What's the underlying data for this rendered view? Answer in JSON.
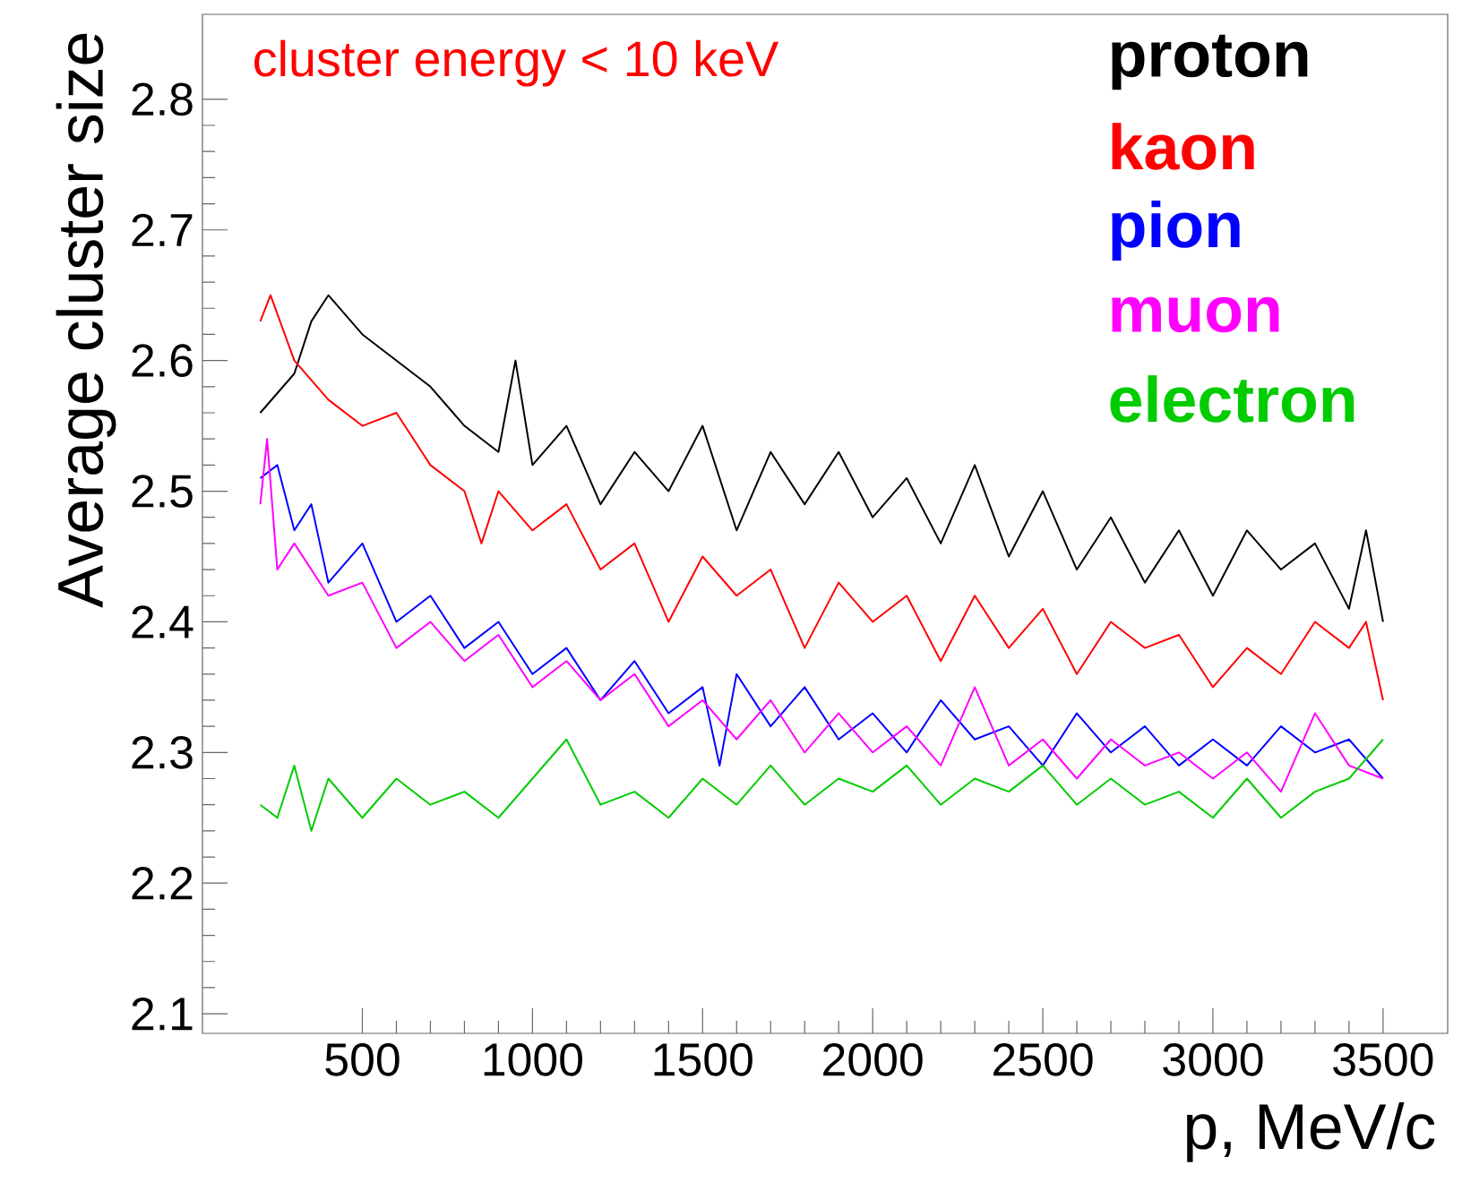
{
  "chart_data": {
    "type": "line",
    "xlabel": "p, MeV/c",
    "ylabel": "Average cluster size",
    "annotations": [
      "cluster energy < 10 keV"
    ],
    "xlim": [
      30,
      3690
    ],
    "ylim": [
      2.085,
      2.865
    ],
    "xticks": [
      500,
      1000,
      1500,
      2000,
      2500,
      3000,
      3500
    ],
    "yticks": [
      2.1,
      2.2,
      2.3,
      2.4,
      2.5,
      2.6,
      2.7,
      2.8
    ],
    "grid": false,
    "legend": "top right",
    "marker": "none",
    "line_style": "solid",
    "series": [
      {
        "name": "proton",
        "color": "#000000",
        "x": [
          200,
          300,
          350,
          400,
          500,
          600,
          700,
          800,
          900,
          950,
          1000,
          1100,
          1200,
          1300,
          1400,
          1500,
          1600,
          1700,
          1800,
          1900,
          2000,
          2100,
          2200,
          2300,
          2400,
          2500,
          2600,
          2700,
          2800,
          2900,
          3000,
          3100,
          3200,
          3300,
          3400,
          3450,
          3500
        ],
        "values": [
          2.56,
          2.59,
          2.63,
          2.65,
          2.62,
          2.6,
          2.58,
          2.55,
          2.53,
          2.6,
          2.52,
          2.55,
          2.49,
          2.53,
          2.5,
          2.55,
          2.47,
          2.53,
          2.49,
          2.53,
          2.48,
          2.51,
          2.46,
          2.52,
          2.45,
          2.5,
          2.44,
          2.48,
          2.43,
          2.47,
          2.42,
          2.47,
          2.44,
          2.46,
          2.41,
          2.47,
          2.4
        ]
      },
      {
        "name": "kaon",
        "color": "#ff0000",
        "x": [
          200,
          230,
          300,
          400,
          500,
          600,
          700,
          800,
          850,
          900,
          1000,
          1100,
          1200,
          1300,
          1400,
          1500,
          1600,
          1700,
          1800,
          1900,
          2000,
          2100,
          2200,
          2300,
          2400,
          2500,
          2600,
          2700,
          2800,
          2900,
          3000,
          3100,
          3200,
          3300,
          3400,
          3450,
          3500
        ],
        "values": [
          2.63,
          2.65,
          2.6,
          2.57,
          2.55,
          2.56,
          2.52,
          2.5,
          2.46,
          2.5,
          2.47,
          2.49,
          2.44,
          2.46,
          2.4,
          2.45,
          2.42,
          2.44,
          2.38,
          2.43,
          2.4,
          2.42,
          2.37,
          2.42,
          2.38,
          2.41,
          2.36,
          2.4,
          2.38,
          2.39,
          2.35,
          2.38,
          2.36,
          2.4,
          2.38,
          2.4,
          2.34
        ]
      },
      {
        "name": "pion",
        "color": "#0000ff",
        "x": [
          200,
          250,
          300,
          350,
          400,
          500,
          600,
          700,
          800,
          900,
          1000,
          1100,
          1200,
          1300,
          1400,
          1500,
          1550,
          1600,
          1700,
          1800,
          1900,
          2000,
          2100,
          2200,
          2300,
          2400,
          2500,
          2600,
          2700,
          2800,
          2900,
          3000,
          3100,
          3200,
          3300,
          3400,
          3500
        ],
        "values": [
          2.51,
          2.52,
          2.47,
          2.49,
          2.43,
          2.46,
          2.4,
          2.42,
          2.38,
          2.4,
          2.36,
          2.38,
          2.34,
          2.37,
          2.33,
          2.35,
          2.29,
          2.36,
          2.32,
          2.35,
          2.31,
          2.33,
          2.3,
          2.34,
          2.31,
          2.32,
          2.29,
          2.33,
          2.3,
          2.32,
          2.29,
          2.31,
          2.29,
          2.32,
          2.3,
          2.31,
          2.28
        ]
      },
      {
        "name": "muon",
        "color": "#ff00ff",
        "x": [
          200,
          220,
          250,
          300,
          400,
          500,
          600,
          700,
          800,
          900,
          1000,
          1100,
          1200,
          1300,
          1400,
          1500,
          1600,
          1700,
          1800,
          1900,
          2000,
          2100,
          2200,
          2300,
          2400,
          2500,
          2600,
          2700,
          2800,
          2900,
          3000,
          3100,
          3200,
          3300,
          3400,
          3500
        ],
        "values": [
          2.49,
          2.54,
          2.44,
          2.46,
          2.42,
          2.43,
          2.38,
          2.4,
          2.37,
          2.39,
          2.35,
          2.37,
          2.34,
          2.36,
          2.32,
          2.34,
          2.31,
          2.34,
          2.3,
          2.33,
          2.3,
          2.32,
          2.29,
          2.35,
          2.29,
          2.31,
          2.28,
          2.31,
          2.29,
          2.3,
          2.28,
          2.3,
          2.27,
          2.33,
          2.29,
          2.28
        ]
      },
      {
        "name": "electron",
        "color": "#00cc00",
        "x": [
          200,
          250,
          300,
          350,
          400,
          500,
          600,
          700,
          800,
          900,
          1000,
          1100,
          1200,
          1300,
          1400,
          1500,
          1600,
          1700,
          1800,
          1900,
          2000,
          2100,
          2200,
          2300,
          2400,
          2500,
          2600,
          2700,
          2800,
          2900,
          3000,
          3100,
          3200,
          3300,
          3400,
          3500
        ],
        "values": [
          2.26,
          2.25,
          2.29,
          2.24,
          2.28,
          2.25,
          2.28,
          2.26,
          2.27,
          2.25,
          2.28,
          2.31,
          2.26,
          2.27,
          2.25,
          2.28,
          2.26,
          2.29,
          2.26,
          2.28,
          2.27,
          2.29,
          2.26,
          2.28,
          2.27,
          2.29,
          2.26,
          2.28,
          2.26,
          2.27,
          2.25,
          2.28,
          2.25,
          2.27,
          2.28,
          2.31
        ]
      }
    ]
  }
}
